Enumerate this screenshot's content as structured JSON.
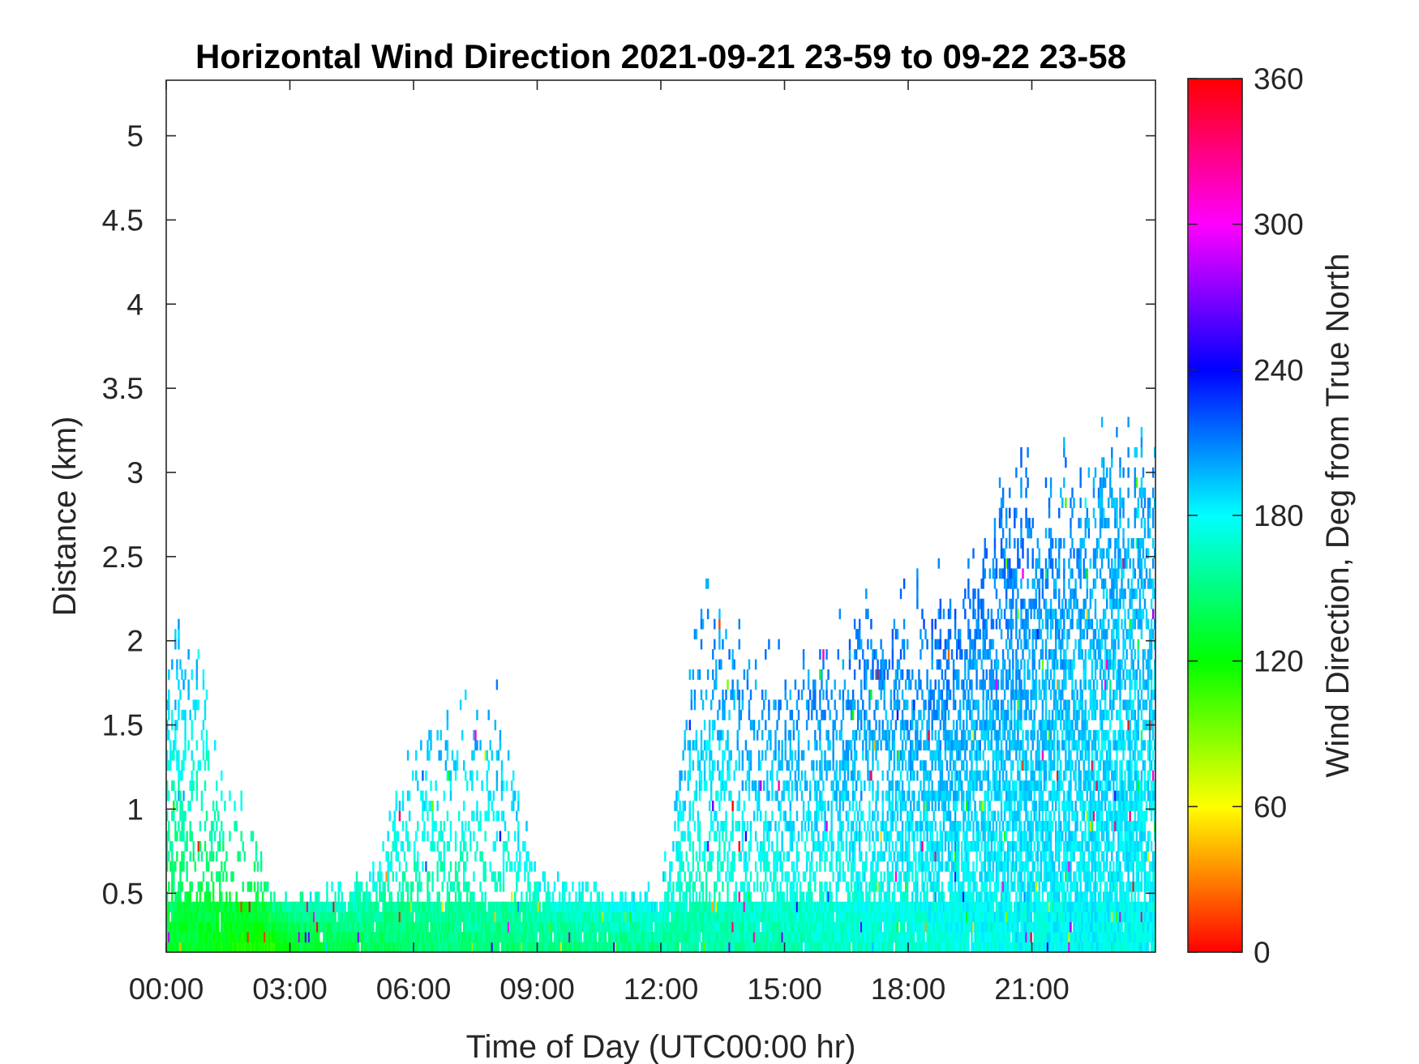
{
  "chart_data": {
    "type": "heatmap",
    "title": "Horizontal Wind Direction 2021-09-21 23-59 to 09-22 23-58",
    "xlabel": "Time of Day (UTC00:00 hr)",
    "ylabel": "Distance (km)",
    "xlim": [
      0,
      24
    ],
    "ylim": [
      0.15,
      5.33
    ],
    "x_tick_labels": [
      "00:00",
      "03:00",
      "06:00",
      "09:00",
      "12:00",
      "15:00",
      "18:00",
      "21:00"
    ],
    "x_ticks": [
      0,
      3,
      6,
      9,
      12,
      15,
      18,
      21
    ],
    "y_ticks": [
      0.5,
      1,
      1.5,
      2,
      2.5,
      3,
      3.5,
      4,
      4.5,
      5
    ],
    "y_tick_labels": [
      "0.5",
      "1",
      "1.5",
      "2",
      "2.5",
      "3",
      "3.5",
      "4",
      "4.5",
      "5"
    ],
    "colorbar": {
      "label": "Wind Direction, Deg from True North",
      "range": [
        0,
        360
      ],
      "ticks": [
        0,
        60,
        120,
        180,
        240,
        300,
        360
      ],
      "tick_labels": [
        "0",
        "60",
        "120",
        "180",
        "240",
        "300",
        "360"
      ],
      "colormap": [
        "#ff0000",
        "#ffff00",
        "#00ff00",
        "#00ffff",
        "#0000ff",
        "#ff00ff",
        "#ff0000"
      ]
    },
    "profiles": [
      {
        "hour": 0.0,
        "top_km": 2.0,
        "dir_low": 130,
        "dir_high": 200,
        "density": 0.65
      },
      {
        "hour": 0.5,
        "top_km": 1.9,
        "dir_low": 128,
        "dir_high": 195,
        "density": 0.5
      },
      {
        "hour": 1.0,
        "top_km": 1.7,
        "dir_low": 125,
        "dir_high": 185,
        "density": 0.4
      },
      {
        "hour": 1.5,
        "top_km": 1.2,
        "dir_low": 120,
        "dir_high": 175,
        "density": 0.3
      },
      {
        "hour": 2.0,
        "top_km": 1.0,
        "dir_low": 115,
        "dir_high": 165,
        "density": 0.25
      },
      {
        "hour": 2.5,
        "top_km": 0.45,
        "dir_low": 112,
        "dir_high": 150,
        "density": 0.6
      },
      {
        "hour": 3.0,
        "top_km": 0.45,
        "dir_low": 125,
        "dir_high": 160,
        "density": 0.85
      },
      {
        "hour": 4.0,
        "top_km": 0.5,
        "dir_low": 135,
        "dir_high": 170,
        "density": 0.85
      },
      {
        "hour": 5.0,
        "top_km": 0.6,
        "dir_low": 140,
        "dir_high": 175,
        "density": 0.8
      },
      {
        "hour": 6.0,
        "top_km": 1.3,
        "dir_low": 145,
        "dir_high": 190,
        "density": 0.45
      },
      {
        "hour": 7.0,
        "top_km": 1.5,
        "dir_low": 148,
        "dir_high": 195,
        "density": 0.35
      },
      {
        "hour": 8.0,
        "top_km": 1.6,
        "dir_low": 150,
        "dir_high": 200,
        "density": 0.3
      },
      {
        "hour": 9.0,
        "top_km": 0.6,
        "dir_low": 150,
        "dir_high": 180,
        "density": 0.75
      },
      {
        "hour": 10.0,
        "top_km": 0.5,
        "dir_low": 150,
        "dir_high": 178,
        "density": 0.8
      },
      {
        "hour": 11.0,
        "top_km": 0.5,
        "dir_low": 152,
        "dir_high": 180,
        "density": 0.8
      },
      {
        "hour": 12.0,
        "top_km": 0.45,
        "dir_low": 155,
        "dir_high": 182,
        "density": 0.85
      },
      {
        "hour": 13.0,
        "top_km": 2.2,
        "dir_low": 158,
        "dir_high": 205,
        "density": 0.45
      },
      {
        "hour": 14.0,
        "top_km": 1.8,
        "dir_low": 160,
        "dir_high": 205,
        "density": 0.5
      },
      {
        "hour": 15.0,
        "top_km": 1.7,
        "dir_low": 162,
        "dir_high": 205,
        "density": 0.55
      },
      {
        "hour": 16.0,
        "top_km": 1.8,
        "dir_low": 165,
        "dir_high": 208,
        "density": 0.6
      },
      {
        "hour": 17.0,
        "top_km": 2.05,
        "dir_low": 168,
        "dir_high": 210,
        "density": 0.65
      },
      {
        "hour": 18.0,
        "top_km": 2.1,
        "dir_low": 170,
        "dir_high": 212,
        "density": 0.7
      },
      {
        "hour": 19.0,
        "top_km": 2.2,
        "dir_low": 172,
        "dir_high": 215,
        "density": 0.8
      },
      {
        "hour": 20.0,
        "top_km": 2.55,
        "dir_low": 175,
        "dir_high": 212,
        "density": 0.8
      },
      {
        "hour": 21.0,
        "top_km": 2.8,
        "dir_low": 178,
        "dir_high": 210,
        "density": 0.8
      },
      {
        "hour": 22.0,
        "top_km": 2.8,
        "dir_low": 178,
        "dir_high": 205,
        "density": 0.8
      },
      {
        "hour": 23.0,
        "top_km": 2.95,
        "dir_low": 178,
        "dir_high": 200,
        "density": 0.85
      },
      {
        "hour": 24.0,
        "top_km": 2.95,
        "dir_low": 178,
        "dir_high": 200,
        "density": 0.85
      }
    ]
  }
}
